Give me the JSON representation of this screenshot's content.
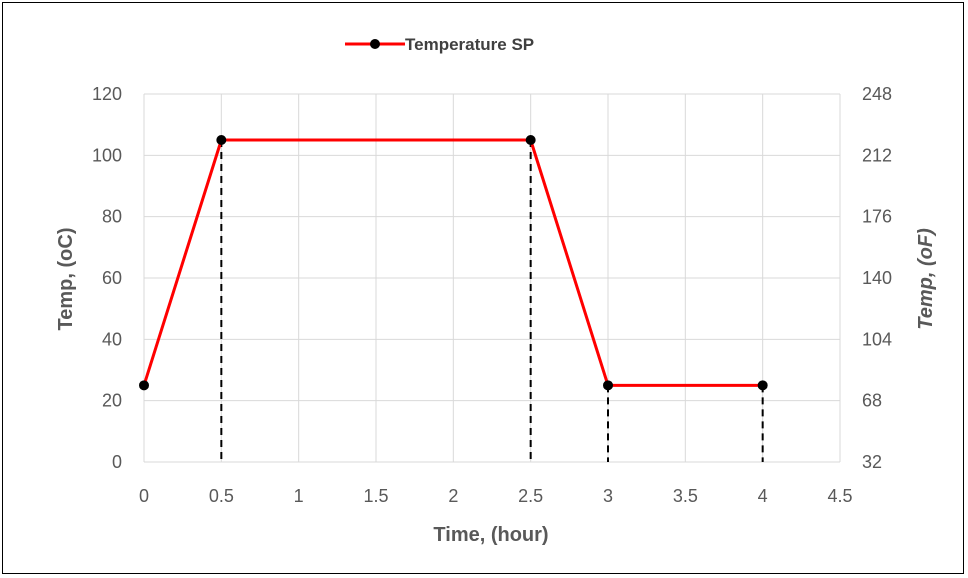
{
  "chart_data": {
    "type": "line",
    "xlabel": "Time, (hour)",
    "ylabel": "Temp, (oC)",
    "ylabel_right": "Temp, (oF)",
    "xlim": [
      0,
      4.5
    ],
    "xticks": [
      "0",
      "0.5",
      "1",
      "1.5",
      "2",
      "2.5",
      "3",
      "3.5",
      "4",
      "4.5"
    ],
    "ylim": [
      0,
      120
    ],
    "yticks": [
      "0",
      "20",
      "40",
      "60",
      "80",
      "100",
      "120"
    ],
    "ylim_right": [
      32,
      248
    ],
    "yticks_right": [
      "32",
      "68",
      "104",
      "140",
      "176",
      "212",
      "248"
    ],
    "grid": true,
    "legend_position": "top-center",
    "series": [
      {
        "name": "Temperature SP",
        "color": "#ff0000",
        "marker_color": "#000000",
        "x": [
          0,
          0.5,
          2.5,
          3,
          4
        ],
        "y": [
          25,
          105,
          105,
          25,
          25
        ]
      }
    ],
    "drop_lines": {
      "style": "dashed",
      "color": "#000000",
      "x": [
        0.5,
        2.5,
        3,
        4
      ]
    }
  }
}
